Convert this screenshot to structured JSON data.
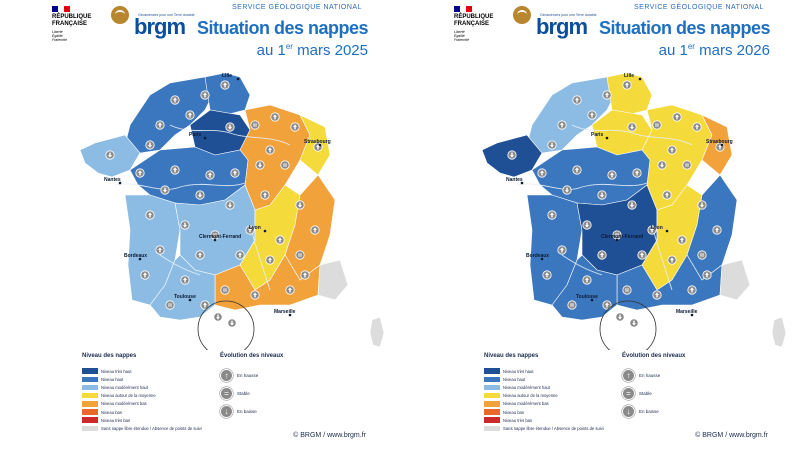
{
  "header": {
    "republique_lines": [
      "RÉPUBLIQUE",
      "FRANÇAISE"
    ],
    "motto": [
      "Liberté",
      "Égalité",
      "Fraternité"
    ],
    "brgm_tagline": "Géosciences pour une Terre durable",
    "brgm_word": "brgm",
    "service": "SERVICE GÉOLOGIQUE NATIONAL",
    "title": "Situation des nappes"
  },
  "colors": {
    "very_high": "#1f4f95",
    "high": "#3b77bf",
    "mod_high": "#8cbce4",
    "near_avg": "#f4da3b",
    "mod_low": "#f2a23a",
    "low": "#e9682b",
    "very_low": "#cc2a2a",
    "no_aquifer": "#dcdcdc",
    "flag_blue": "#000091",
    "flag_red": "#e1000f"
  },
  "legend": {
    "levels_title": "Niveau des nappes",
    "levels": [
      {
        "label": "Niveau très haut",
        "color_key": "very_high"
      },
      {
        "label": "Niveau haut",
        "color_key": "high"
      },
      {
        "label": "Niveau modérément haut",
        "color_key": "mod_high"
      },
      {
        "label": "Niveau autour de la moyenne",
        "color_key": "near_avg"
      },
      {
        "label": "Niveau modérément bas",
        "color_key": "mod_low"
      },
      {
        "label": "Niveau bas",
        "color_key": "low"
      },
      {
        "label": "Niveau très bas",
        "color_key": "very_low"
      },
      {
        "label": "Sans nappe libre étendue / Absence de points de suivi",
        "color_key": "no_aquifer"
      }
    ],
    "evolution_title": "Évolution des niveaux",
    "evolution": [
      {
        "label": "En hausse",
        "icon": "arrow-up-icon"
      },
      {
        "label": "Stable",
        "icon": "equals-icon"
      },
      {
        "label": "En baisse",
        "icon": "arrow-down-icon"
      }
    ]
  },
  "copyright": "© BRGM / www.brgm.fr",
  "cities": [
    "Lille",
    "Paris",
    "Strasbourg",
    "Nantes",
    "Lyon",
    "Clermont-Ferrand",
    "Bordeaux",
    "Toulouse",
    "Marseille"
  ],
  "maps": [
    {
      "date_day": "au 1",
      "date_sup": "er",
      "date_rest": " mars 2025",
      "regions": {
        "nw": "high",
        "bretagne": "mod_high",
        "north": "high",
        "paris": "very_high",
        "east": "mod_low",
        "alsace": "near_avg",
        "centre": "high",
        "southwest": "mod_high",
        "massif": "mod_high",
        "rhone": "near_avg",
        "alps": "mod_low",
        "mediterranean": "mod_low",
        "pyrenees": "mod_high",
        "corsica": "no_aquifer"
      }
    },
    {
      "date_day": "au 1",
      "date_sup": "er",
      "date_rest": " mars 2026",
      "regions": {
        "nw": "mod_high",
        "bretagne": "very_high",
        "north": "near_avg",
        "paris": "near_avg",
        "east": "near_avg",
        "alsace": "mod_low",
        "centre": "high",
        "southwest": "high",
        "massif": "very_high",
        "rhone": "near_avg",
        "alps": "high",
        "mediterranean": "high",
        "pyrenees": "high",
        "corsica": "no_aquifer"
      }
    }
  ]
}
